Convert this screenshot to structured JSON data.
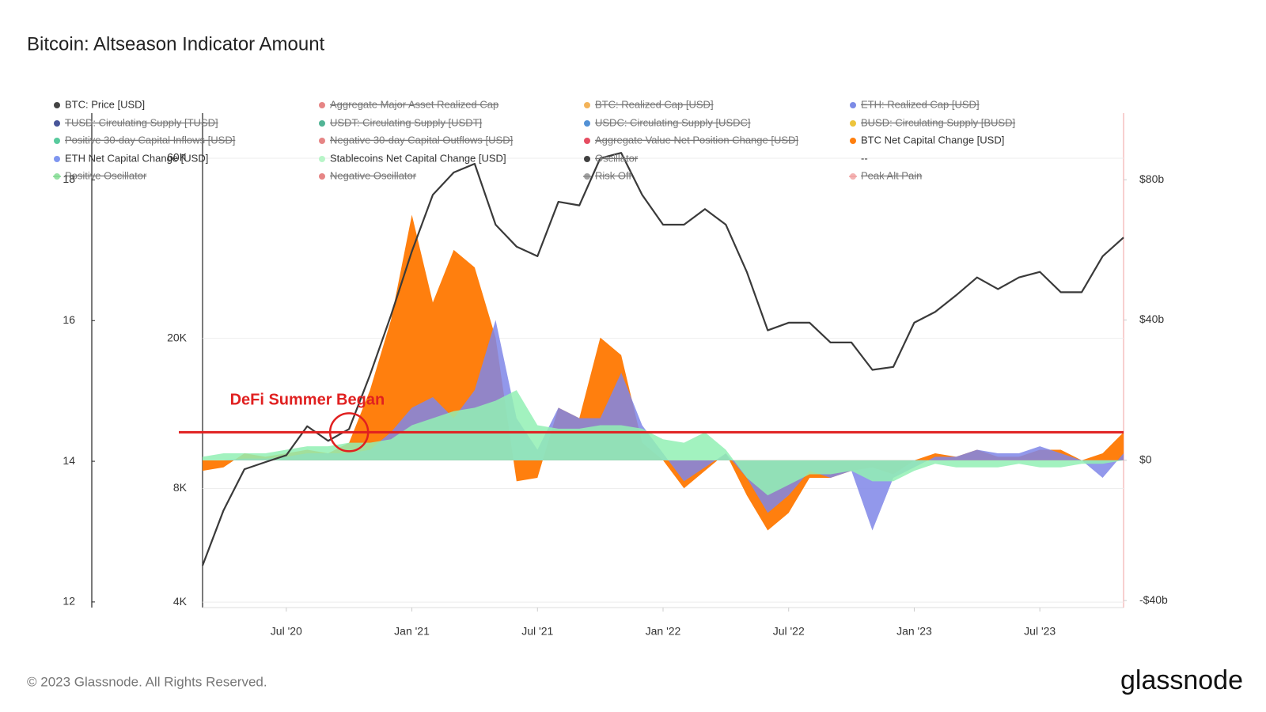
{
  "chart_data": {
    "type": "line",
    "title": "Bitcoin: Altseason Indicator Amount",
    "footer": "© 2023 Glassnode. All Rights Reserved.",
    "logo": "glassnode",
    "x": [
      "2020-03",
      "2020-04",
      "2020-05",
      "2020-06",
      "2020-07",
      "2020-08",
      "2020-09",
      "2020-10",
      "2020-11",
      "2020-12",
      "2021-01",
      "2021-02",
      "2021-03",
      "2021-04",
      "2021-05",
      "2021-06",
      "2021-07",
      "2021-08",
      "2021-09",
      "2021-10",
      "2021-11",
      "2021-12",
      "2022-01",
      "2022-02",
      "2022-03",
      "2022-04",
      "2022-05",
      "2022-06",
      "2022-07",
      "2022-08",
      "2022-09",
      "2022-10",
      "2022-11",
      "2022-12",
      "2023-01",
      "2023-02",
      "2023-03",
      "2023-04",
      "2023-05",
      "2023-06",
      "2023-07",
      "2023-08",
      "2023-09",
      "2023-10",
      "2023-11"
    ],
    "xlim": [
      "2020-03",
      "2023-11"
    ],
    "xticks": [
      {
        "value": "2020-07",
        "label": "Jul '20"
      },
      {
        "value": "2021-01",
        "label": "Jan '21"
      },
      {
        "value": "2021-07",
        "label": "Jul '21"
      },
      {
        "value": "2022-01",
        "label": "Jan '22"
      },
      {
        "value": "2022-07",
        "label": "Jul '22"
      },
      {
        "value": "2023-01",
        "label": "Jan '23"
      },
      {
        "value": "2023-07",
        "label": "Jul '23"
      }
    ],
    "ylog": true,
    "ylim": [
      3870,
      79000
    ],
    "yticks": [
      {
        "value": 4000,
        "label": "4K"
      },
      {
        "value": 8000,
        "label": "8K"
      },
      {
        "value": 20000,
        "label": "20K"
      },
      {
        "value": 60000,
        "label": "60K"
      }
    ],
    "y2lim": [
      -42,
      99
    ],
    "y2ticks": [
      {
        "value": -40,
        "label": "-$40b"
      },
      {
        "value": 0,
        "label": "$0"
      },
      {
        "value": 40,
        "label": "$40b"
      },
      {
        "value": 80,
        "label": "$80b"
      }
    ],
    "y3lim": [
      11.92,
      18.95
    ],
    "y3ticks": [
      12,
      14,
      16,
      18
    ],
    "grid": true,
    "series": [
      {
        "name": "BTC Net Capital Change [USD]",
        "color": "#ff7f0e",
        "axis": "y2",
        "kind": "area",
        "values": [
          -3,
          -2,
          2,
          1,
          2,
          3,
          2,
          5,
          20,
          40,
          70,
          45,
          60,
          55,
          35,
          -6,
          -5,
          15,
          12,
          35,
          30,
          5,
          0,
          -8,
          -3,
          2,
          -10,
          -20,
          -15,
          -5,
          -5,
          -3,
          -2,
          -4,
          0,
          2,
          1,
          3,
          1,
          1,
          3,
          3,
          0,
          2,
          8
        ]
      },
      {
        "name": "ETH Net Capital Change [USD]",
        "color": "#7f86e8",
        "axis": "y2",
        "kind": "area",
        "values": [
          0,
          0,
          0.5,
          0.5,
          1,
          2,
          2,
          2,
          3,
          8,
          15,
          18,
          12,
          20,
          40,
          12,
          3,
          15,
          12,
          12,
          25,
          10,
          2,
          -6,
          -2,
          2,
          -5,
          -15,
          -10,
          -3,
          -5,
          -3,
          -20,
          -5,
          -2,
          1,
          1,
          3,
          2,
          2,
          4,
          2,
          0,
          -5,
          2
        ]
      },
      {
        "name": "Stablecoins Net Capital Change [USD]",
        "color": "#92f0b4",
        "axis": "y2",
        "kind": "area",
        "values": [
          1,
          2,
          2,
          2,
          3,
          4,
          4,
          5,
          5,
          6,
          10,
          12,
          14,
          15,
          17,
          20,
          10,
          9,
          9,
          10,
          10,
          9,
          6,
          5,
          8,
          3,
          -5,
          -10,
          -7,
          -4,
          -4,
          -3,
          -6,
          -6,
          -3,
          -1,
          -2,
          -2,
          -2,
          -1,
          -2,
          -2,
          -1,
          -1,
          0
        ]
      },
      {
        "name": "BTC: Price [USD]",
        "color": "#3a3a3a",
        "axis": "y",
        "kind": "line",
        "values": [
          5000,
          7000,
          9000,
          9400,
          9800,
          11700,
          10700,
          11500,
          16000,
          23000,
          34000,
          48000,
          55000,
          58000,
          40000,
          35000,
          33000,
          46000,
          45000,
          60000,
          62000,
          48000,
          40000,
          40000,
          44000,
          40000,
          30000,
          21000,
          22000,
          22000,
          19500,
          19500,
          16500,
          16800,
          22000,
          23500,
          26000,
          29000,
          27000,
          29000,
          30000,
          26500,
          26500,
          33000,
          37000
        ]
      }
    ],
    "legend": [
      {
        "name": "BTC: Price [USD]",
        "color": "#444444",
        "visible": true
      },
      {
        "name": "Aggregate Major Asset Realized Cap",
        "color": "#e06666",
        "visible": false
      },
      {
        "name": "BTC: Realized Cap [USD]",
        "color": "#f0a030",
        "visible": false
      },
      {
        "name": "ETH: Realized Cap [USD]",
        "color": "#5b6ee0",
        "visible": false
      },
      {
        "name": "TUSD: Circulating Supply [TUSD]",
        "color": "#1a2a80",
        "visible": false
      },
      {
        "name": "USDT: Circulating Supply [USDT]",
        "color": "#26a17b",
        "visible": false
      },
      {
        "name": "USDC: Circulating Supply [USDC]",
        "color": "#2775ca",
        "visible": false
      },
      {
        "name": "BUSD: Circulating Supply [BUSD]",
        "color": "#e8b50a",
        "visible": false
      },
      {
        "name": "Positive 30-day Capital Inflows [USD]",
        "color": "#2ebd85",
        "visible": false
      },
      {
        "name": "Negative 30-day Capital Outflows [USD]",
        "color": "#e06666",
        "visible": false
      },
      {
        "name": "Aggregate Value Net Position Change [USD]",
        "color": "#e0203a",
        "visible": false
      },
      {
        "name": "BTC Net Capital Change [USD]",
        "color": "#ff7f0e",
        "visible": true
      },
      {
        "name": "ETH Net Capital Change [USD]",
        "color": "#7f96f0",
        "visible": true
      },
      {
        "name": "Stablecoins Net Capital Change [USD]",
        "color": "#b8f5c8",
        "visible": true
      },
      {
        "name": "Oscillator",
        "color": "#111111",
        "visible": false
      },
      {
        "name": "--",
        "visible": true
      },
      {
        "name": "Positive Oscillator",
        "color": "#7ed98f",
        "visible": false,
        "marker": "line"
      },
      {
        "name": "Negative Oscillator",
        "color": "#e06666",
        "visible": false
      },
      {
        "name": "Risk Off",
        "color": "#888888",
        "visible": false,
        "marker": "line"
      },
      {
        "name": "Peak Alt Pain",
        "color": "#f0a0a0",
        "visible": false,
        "marker": "line"
      }
    ],
    "annotation": {
      "text": "DeFi Summer Began",
      "x": "2020-10",
      "y2": 8,
      "color": "#e02020"
    }
  }
}
